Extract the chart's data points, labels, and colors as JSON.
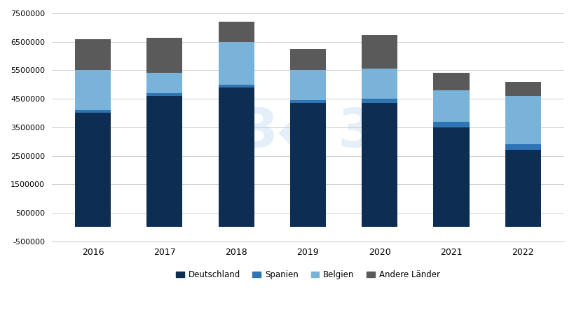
{
  "years": [
    2016,
    2017,
    2018,
    2019,
    2020,
    2021,
    2022
  ],
  "deutschland": [
    4000000,
    4600000,
    4900000,
    4350000,
    4350000,
    3500000,
    2700000
  ],
  "spanien": [
    100000,
    100000,
    100000,
    100000,
    150000,
    200000,
    200000
  ],
  "belgien": [
    1400000,
    700000,
    1500000,
    1050000,
    1050000,
    1100000,
    1700000
  ],
  "andere": [
    1100000,
    1250000,
    700000,
    750000,
    1200000,
    600000,
    500000
  ],
  "colors": {
    "deutschland": "#0d2d52",
    "spanien": "#2e75b6",
    "belgien": "#7ab3d9",
    "andere": "#5a5a5a"
  },
  "ylim": [
    -500000,
    7500000
  ],
  "yticks": [
    -500000,
    500000,
    1500000,
    2500000,
    3500000,
    4500000,
    5500000,
    6500000,
    7500000
  ],
  "legend_labels": [
    "Deutschland",
    "Spanien",
    "Belgien",
    "Andere Länder"
  ],
  "background_color": "#ffffff",
  "grid_color": "#d0d0d0"
}
